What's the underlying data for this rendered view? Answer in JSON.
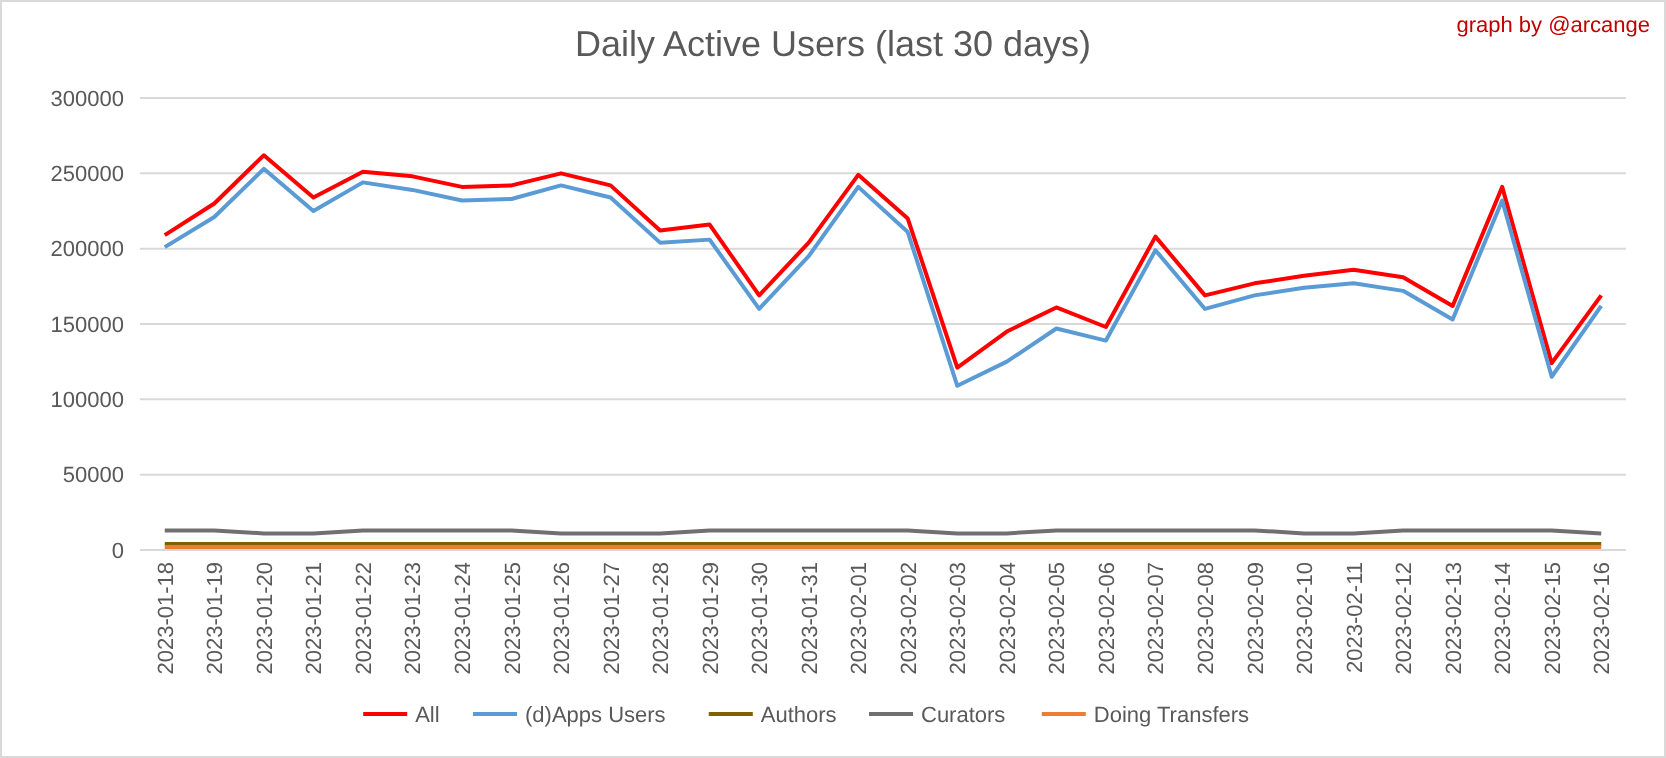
{
  "chart_data": {
    "type": "line",
    "title": "Daily Active Users (last 30 days)",
    "annotations": [
      "graph by @arcange"
    ],
    "categories": [
      "2023-01-18",
      "2023-01-19",
      "2023-01-20",
      "2023-01-21",
      "2023-01-22",
      "2023-01-23",
      "2023-01-24",
      "2023-01-25",
      "2023-01-26",
      "2023-01-27",
      "2023-01-28",
      "2023-01-29",
      "2023-01-30",
      "2023-01-31",
      "2023-02-01",
      "2023-02-02",
      "2023-02-03",
      "2023-02-04",
      "2023-02-05",
      "2023-02-06",
      "2023-02-07",
      "2023-02-08",
      "2023-02-09",
      "2023-02-10",
      "2023-02-11",
      "2023-02-12",
      "2023-02-13",
      "2023-02-14",
      "2023-02-15",
      "2023-02-16"
    ],
    "series": [
      {
        "name": "All",
        "color": "#ff0000",
        "values": [
          209000,
          230000,
          262000,
          234000,
          251000,
          248000,
          241000,
          242000,
          250000,
          242000,
          212000,
          216000,
          169000,
          204000,
          249000,
          220000,
          121000,
          145000,
          161000,
          148000,
          208000,
          169000,
          177000,
          182000,
          186000,
          181000,
          162000,
          241000,
          124000,
          169000
        ]
      },
      {
        "name": "(d)Apps Users",
        "color": "#5b9bd5",
        "values": [
          201000,
          221000,
          253000,
          225000,
          244000,
          239000,
          232000,
          233000,
          242000,
          234000,
          204000,
          206000,
          160000,
          195000,
          241000,
          211000,
          109000,
          125000,
          147000,
          139000,
          199000,
          160000,
          169000,
          174000,
          177000,
          172000,
          153000,
          232000,
          115000,
          162000
        ]
      },
      {
        "name": "Authors",
        "color": "#806000",
        "values": [
          4000,
          4000,
          4000,
          4000,
          4000,
          4000,
          4000,
          4000,
          4000,
          4000,
          4000,
          4000,
          4000,
          4000,
          4000,
          4000,
          4000,
          4000,
          4000,
          4000,
          4000,
          4000,
          4000,
          4000,
          4000,
          4000,
          4000,
          4000,
          4000,
          4000
        ]
      },
      {
        "name": "Curators",
        "color": "#707070",
        "values": [
          13000,
          13000,
          11000,
          11000,
          13000,
          13000,
          13000,
          13000,
          11000,
          11000,
          11000,
          13000,
          13000,
          13000,
          13000,
          13000,
          11000,
          11000,
          13000,
          13000,
          13000,
          13000,
          13000,
          11000,
          11000,
          13000,
          13000,
          13000,
          13000,
          11000
        ]
      },
      {
        "name": "Doing Transfers",
        "color": "#ed7d31",
        "values": [
          2000,
          2000,
          2000,
          2000,
          2000,
          2000,
          2000,
          2000,
          2000,
          2000,
          2000,
          2000,
          2000,
          2000,
          2000,
          2000,
          2000,
          2000,
          2000,
          2000,
          2000,
          2000,
          2000,
          2000,
          2000,
          2000,
          2000,
          2000,
          2000,
          2000
        ]
      }
    ],
    "ylim": [
      0,
      300000
    ],
    "yticks": [
      0,
      50000,
      100000,
      150000,
      200000,
      250000,
      300000
    ],
    "grid": "y",
    "legend": "bottom",
    "marker": "none",
    "line_style": "solid"
  }
}
